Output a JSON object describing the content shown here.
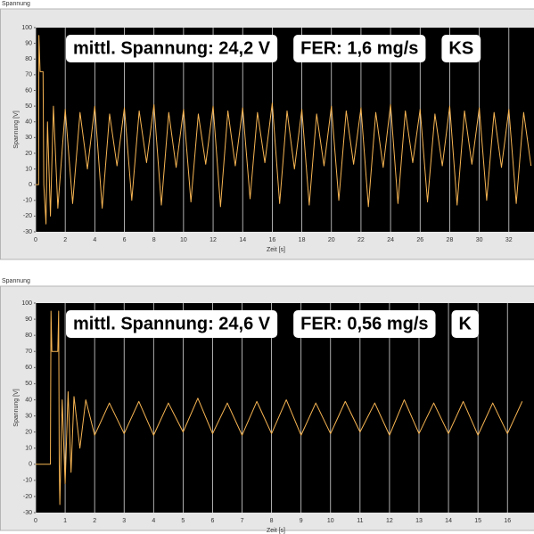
{
  "chart_data": [
    {
      "type": "line",
      "title": "Spannung",
      "ylabel": "Spannung [V]",
      "xlabel": "Zeit [s]",
      "annotations": [
        "mittl. Spannung: 24,2 V",
        "FER: 1,6 mg/s",
        "KS"
      ],
      "color": "#f7b553",
      "xgrid": true,
      "xlim": [
        0,
        33.7
      ],
      "ylim": [
        -30,
        100
      ],
      "xticks": [
        0,
        2,
        4,
        6,
        8,
        10,
        12,
        14,
        16,
        18,
        20,
        22,
        24,
        26,
        28,
        30,
        32
      ],
      "yticks": [
        -30,
        -20,
        -10,
        0,
        10,
        20,
        30,
        40,
        50,
        60,
        70,
        80,
        90,
        100
      ],
      "x": [
        0,
        0.2,
        0.22,
        0.3,
        0.5,
        0.55,
        0.7,
        0.8,
        1.0,
        1.2,
        1.5,
        2,
        2.5,
        3,
        3.5,
        4,
        4.5,
        5,
        5.5,
        6,
        6.5,
        7,
        7.5,
        8,
        8.5,
        9,
        9.5,
        10,
        10.5,
        11,
        11.5,
        12,
        12.5,
        13,
        13.5,
        14,
        14.5,
        15,
        15.5,
        16,
        16.5,
        17,
        17.5,
        18,
        18.5,
        19,
        19.5,
        20,
        20.5,
        21,
        21.5,
        22,
        22.5,
        23,
        23.5,
        24,
        24.5,
        25,
        25.5,
        26,
        26.5,
        27,
        27.5,
        28,
        28.5,
        29,
        29.5,
        30,
        30.5,
        31,
        31.5,
        32,
        32.5,
        33,
        33.5
      ],
      "values": [
        0,
        0,
        95,
        72,
        72,
        0,
        -25,
        40,
        -20,
        50,
        -15,
        48,
        -12,
        46,
        10,
        50,
        -15,
        45,
        12,
        49,
        -10,
        47,
        14,
        51,
        -13,
        46,
        11,
        48,
        -11,
        45,
        13,
        50,
        -14,
        47,
        12,
        49,
        -9,
        46,
        14,
        52,
        -12,
        47,
        10,
        48,
        -13,
        45,
        12,
        50,
        -10,
        47,
        13,
        49,
        -14,
        46,
        11,
        51,
        -12,
        47,
        14,
        48,
        -11,
        45,
        12,
        50,
        -13,
        47,
        13,
        49,
        -10,
        46,
        11,
        48,
        -12,
        46,
        12
      ]
    },
    {
      "type": "line",
      "title": "Spannung",
      "ylabel": "Spannung [V]",
      "xlabel": "Zeit [s]",
      "annotations": [
        "mittl. Spannung: 24,6 V",
        "FER: 0,56 mg/s",
        "K"
      ],
      "color": "#f7b553",
      "xgrid": true,
      "xlim": [
        0,
        16.9
      ],
      "ylim": [
        -30,
        100
      ],
      "xticks": [
        0,
        1,
        2,
        3,
        4,
        5,
        6,
        7,
        8,
        9,
        10,
        11,
        12,
        13,
        14,
        15,
        16
      ],
      "yticks": [
        -30,
        -20,
        -10,
        0,
        10,
        20,
        30,
        40,
        50,
        60,
        70,
        80,
        90,
        100
      ],
      "x": [
        0,
        0.5,
        0.52,
        0.55,
        0.75,
        0.78,
        0.8,
        0.82,
        0.9,
        1.0,
        1.1,
        1.2,
        1.3,
        1.5,
        1.7,
        2.0,
        2.5,
        3.0,
        3.5,
        4.0,
        4.5,
        5.0,
        5.5,
        6.0,
        6.5,
        7.0,
        7.5,
        8.0,
        8.5,
        9.0,
        9.5,
        10.0,
        10.5,
        11.0,
        11.5,
        12.0,
        12.5,
        13.0,
        13.5,
        14.0,
        14.5,
        15.0,
        15.5,
        16.0,
        16.5
      ],
      "values": [
        0,
        0,
        95,
        70,
        70,
        95,
        0,
        -25,
        40,
        -12,
        45,
        -5,
        42,
        10,
        40,
        18,
        38,
        19,
        39,
        18,
        38,
        20,
        41,
        19,
        38,
        18,
        39,
        19,
        40,
        18,
        38,
        19,
        39,
        20,
        38,
        18,
        40,
        19,
        38,
        19,
        39,
        18,
        38,
        19,
        39
      ]
    }
  ]
}
